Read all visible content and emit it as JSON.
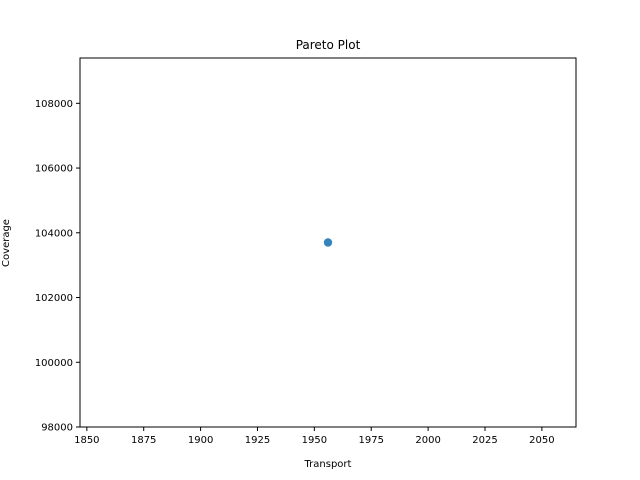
{
  "chart_data": {
    "type": "scatter",
    "title": "Pareto Plot",
    "xlabel": "Transport",
    "ylabel": "Coverage",
    "xlim": [
      1847,
      2065
    ],
    "ylim": [
      98000,
      109400
    ],
    "xticks": [
      1850,
      1875,
      1900,
      1925,
      1950,
      1975,
      2000,
      2025,
      2050
    ],
    "yticks": [
      98000,
      100000,
      102000,
      104000,
      106000,
      108000
    ],
    "grid": false,
    "series": [
      {
        "color": "#1f77b4",
        "points": [
          {
            "x": 1956,
            "y": 103700
          }
        ]
      }
    ]
  }
}
